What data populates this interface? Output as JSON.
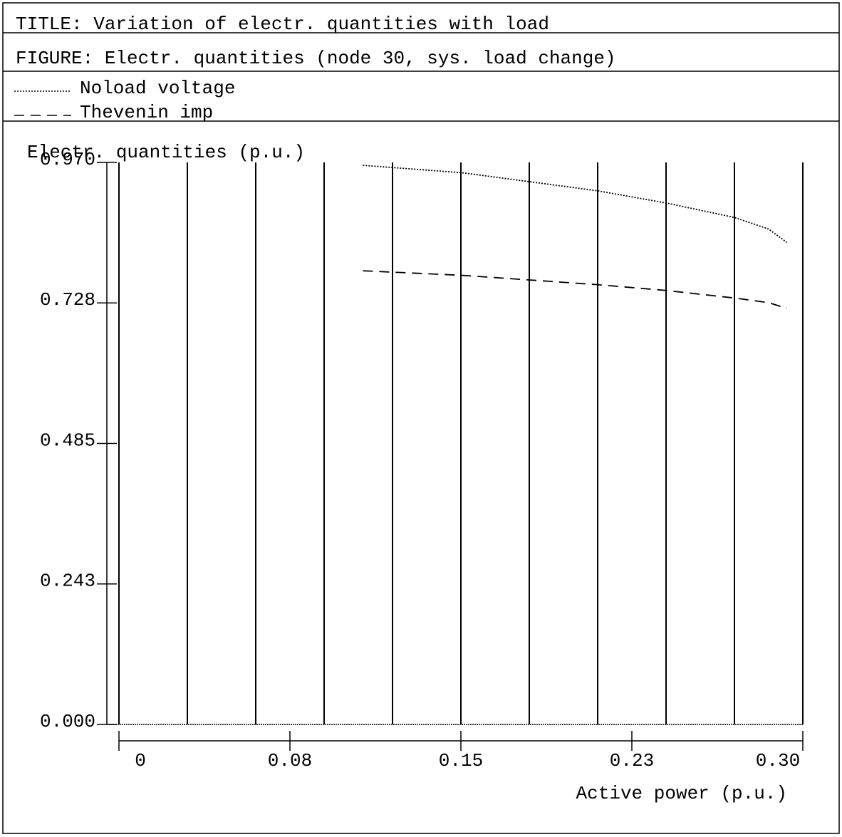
{
  "chart_data": {
    "type": "line",
    "title": "TITLE: Variation of electr. quantities with load",
    "figure": "FIGURE: Electr. quantities (node 30, sys. load change)",
    "y_label": "Electr. quantities (p.u.)",
    "x_label": "Active power (p.u.)",
    "x": [
      0.107,
      0.151,
      0.21,
      0.24,
      0.27,
      0.285,
      0.293
    ],
    "series": [
      {
        "name": "Noload voltage",
        "color": "#000000",
        "dash": "dotted",
        "values": [
          0.965,
          0.952,
          0.921,
          0.9,
          0.875,
          0.855,
          0.832
        ]
      },
      {
        "name": "Thevenin imp",
        "color": "#000000",
        "dash": "dashed",
        "values": [
          0.783,
          0.775,
          0.759,
          0.749,
          0.736,
          0.728,
          0.718
        ]
      }
    ],
    "xlim": [
      0,
      0.3
    ],
    "ylim": [
      0,
      0.97
    ],
    "xticks": [
      0,
      {
        "value": 0.075,
        "label": "0.08"
      },
      0.15,
      {
        "value": 0.225,
        "label": "0.23"
      },
      {
        "value": 0.3,
        "label": "0.30"
      }
    ],
    "yticks": [
      {
        "value": 0,
        "label": "0.000"
      },
      {
        "value": 0.2425,
        "label": "0.243"
      },
      {
        "value": 0.485,
        "label": "0.485"
      },
      {
        "value": 0.7275,
        "label": "0.728"
      },
      {
        "value": 0.97,
        "label": "0.970"
      }
    ],
    "x_grid": [
      0,
      0.03,
      0.06,
      0.09,
      0.12,
      0.15,
      0.18,
      0.21,
      0.24,
      0.27,
      0.3
    ]
  }
}
